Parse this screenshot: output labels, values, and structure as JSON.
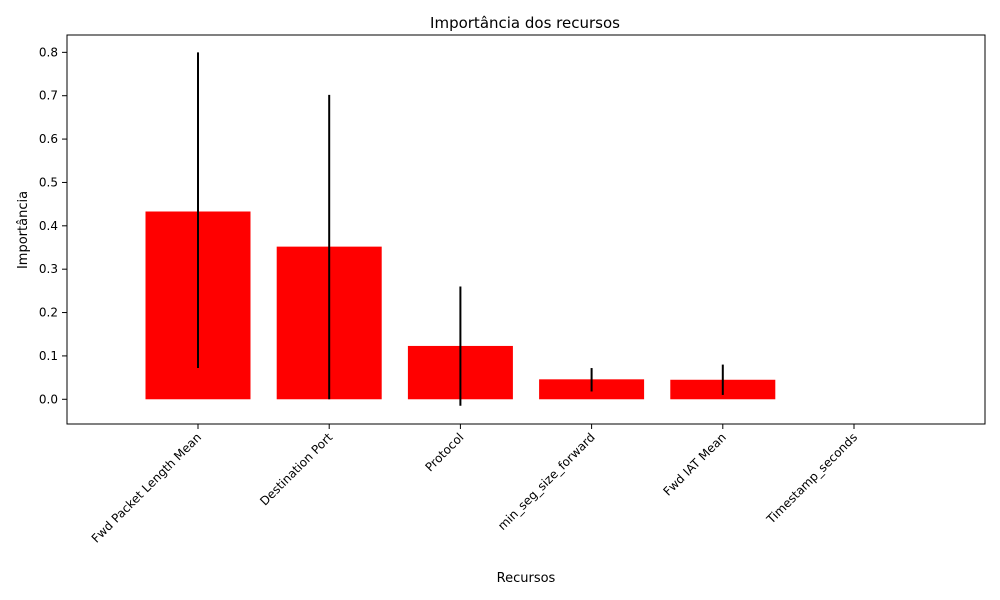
{
  "chart_data": {
    "type": "bar",
    "title": "Importância dos recursos",
    "xlabel": "Recursos",
    "ylabel": "Importância",
    "categories": [
      "Fwd Packet Length Mean",
      "Destination Port",
      "Protocol",
      "min_seg_size_forward",
      "Fwd IAT Mean",
      "Timestamp_seconds"
    ],
    "values": [
      0.433,
      0.352,
      0.123,
      0.046,
      0.045,
      0.0
    ],
    "error_low": [
      0.072,
      0.0,
      -0.015,
      0.018,
      0.01,
      0.0
    ],
    "error_high": [
      0.8,
      0.702,
      0.26,
      0.072,
      0.08,
      0.0
    ],
    "ylim": [
      -0.057,
      0.84
    ],
    "yticks": [
      "0.0",
      "0.1",
      "0.2",
      "0.3",
      "0.4",
      "0.5",
      "0.6",
      "0.7",
      "0.8"
    ],
    "bar_color": "#ff0000",
    "error_color": "#000000",
    "grid": false
  }
}
